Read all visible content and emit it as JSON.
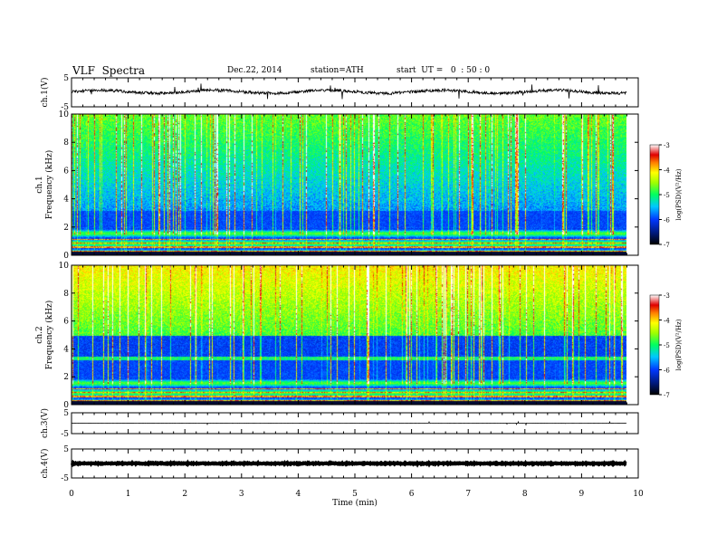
{
  "header": {
    "title": "VLF  Spectra",
    "date": "Dec.22, 2014",
    "station": "station=ATH",
    "start": "start  UT =   0  : 50 : 0"
  },
  "chart_data": {
    "type": "heatmap",
    "xlabel": "Time  (min)",
    "xlim": [
      0,
      10
    ],
    "xticks": [
      "0",
      "1",
      "2",
      "3",
      "4",
      "5",
      "6",
      "7",
      "8",
      "9",
      "10"
    ],
    "data_end_min": 9.8,
    "panels": [
      {
        "id": "ch1-waveform",
        "type": "line",
        "ylabel": "ch.1(V)",
        "ylim": [
          -5,
          5
        ],
        "yticks": [
          "5",
          "-5"
        ],
        "baseline": 0.2,
        "noise": 1.0
      },
      {
        "id": "ch1-spectrogram",
        "type": "heatmap",
        "ylabel": "ch.1\nFrequency  (kHz)",
        "ylim": [
          0,
          10
        ],
        "yticks": [
          "0",
          "2",
          "4",
          "6",
          "8",
          "10"
        ],
        "colorbar": {
          "label": "log(PSD)(V²/Hz)",
          "range": [
            -7,
            -3
          ],
          "ticks": [
            "-3",
            "-4",
            "-5",
            "-6",
            "-7"
          ]
        }
      },
      {
        "id": "ch2-spectrogram",
        "type": "heatmap",
        "ylabel": "ch.2\nFrequency  (kHz)",
        "ylim": [
          0,
          10
        ],
        "yticks": [
          "0",
          "2",
          "4",
          "6",
          "8",
          "10"
        ],
        "colorbar": {
          "label": "log(PSD)(V²/Hz)",
          "range": [
            -7,
            -3
          ],
          "ticks": [
            "-3",
            "-4",
            "-5",
            "-6",
            "-7"
          ]
        }
      },
      {
        "id": "ch3-waveform",
        "type": "line",
        "ylabel": "ch.3(V)",
        "ylim": [
          -5,
          5
        ],
        "yticks": [
          "5",
          "-5"
        ],
        "baseline": 0,
        "noise": 0.1
      },
      {
        "id": "ch4-waveform",
        "type": "line",
        "ylabel": "ch.4(V)",
        "ylim": [
          -5,
          5
        ],
        "yticks": [
          "5",
          "-5"
        ],
        "baseline": 0,
        "noise": 0.3
      }
    ]
  }
}
